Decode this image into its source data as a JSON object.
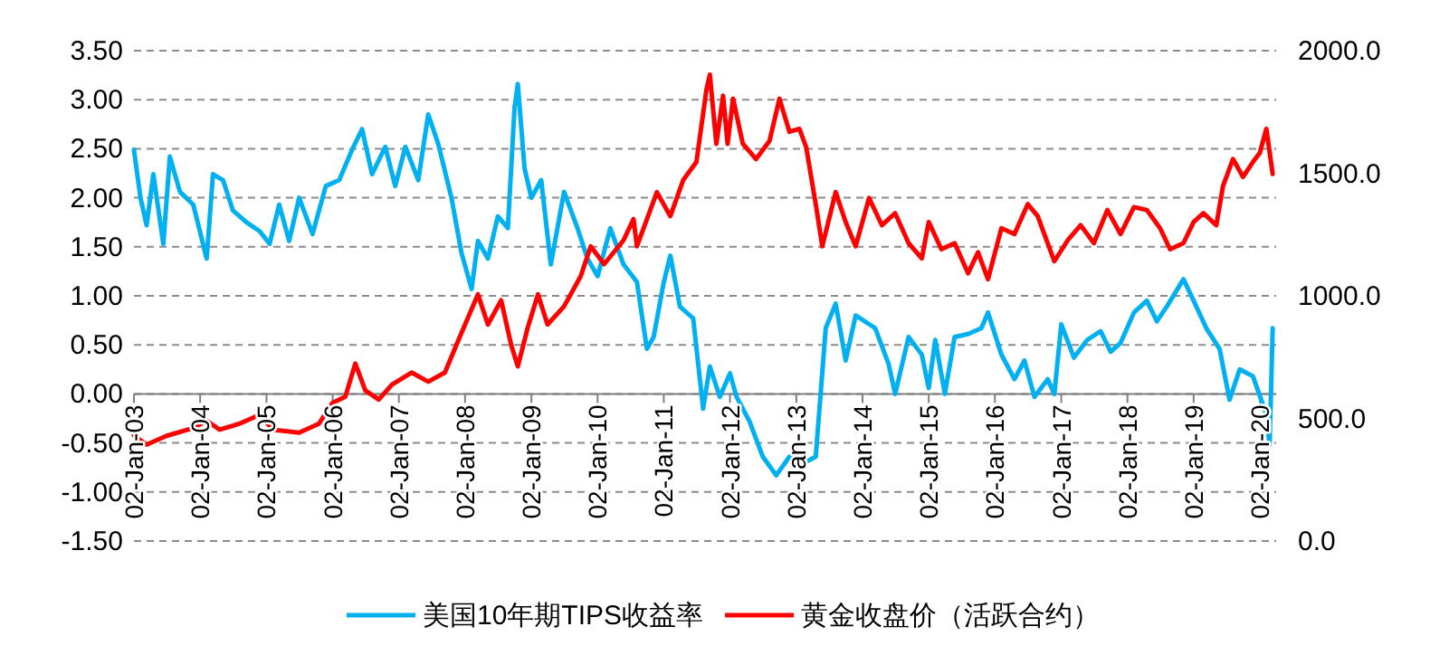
{
  "chart_data": {
    "type": "line",
    "grid": "y",
    "legend": "bottom",
    "xlim": [
      "2003-01-02",
      "2020-04-01"
    ],
    "xticks": [
      {
        "value": "2003-01-02",
        "label": "02-Jan-03"
      },
      {
        "value": "2004-01-02",
        "label": "02-Jan-04"
      },
      {
        "value": "2005-01-02",
        "label": "02-Jan-05"
      },
      {
        "value": "2006-01-02",
        "label": "02-Jan-06"
      },
      {
        "value": "2007-01-02",
        "label": "02-Jan-07"
      },
      {
        "value": "2008-01-02",
        "label": "02-Jan-08"
      },
      {
        "value": "2009-01-02",
        "label": "02-Jan-09"
      },
      {
        "value": "2010-01-02",
        "label": "02-Jan-10"
      },
      {
        "value": "2011-01-02",
        "label": "02-Jan-11"
      },
      {
        "value": "2012-01-02",
        "label": "02-Jan-12"
      },
      {
        "value": "2013-01-02",
        "label": "02-Jan-13"
      },
      {
        "value": "2014-01-02",
        "label": "02-Jan-14"
      },
      {
        "value": "2015-01-02",
        "label": "02-Jan-15"
      },
      {
        "value": "2016-01-02",
        "label": "02-Jan-16"
      },
      {
        "value": "2017-01-02",
        "label": "02-Jan-17"
      },
      {
        "value": "2018-01-02",
        "label": "02-Jan-18"
      },
      {
        "value": "2019-01-02",
        "label": "02-Jan-19"
      },
      {
        "value": "2020-01-02",
        "label": "02-Jan-20"
      }
    ],
    "ylim": [
      -1.5,
      3.5
    ],
    "yticks": [
      {
        "value": -1.5,
        "label": "-1.50"
      },
      {
        "value": -1,
        "label": "-1.00"
      },
      {
        "value": -0.5,
        "label": "-0.50"
      },
      {
        "value": 0,
        "label": "0.00"
      },
      {
        "value": 0.5,
        "label": "0.50"
      },
      {
        "value": 1,
        "label": "1.00"
      },
      {
        "value": 1.5,
        "label": "1.50"
      },
      {
        "value": 2,
        "label": "2.00"
      },
      {
        "value": 2.5,
        "label": "2.50"
      },
      {
        "value": 3,
        "label": "3.00"
      },
      {
        "value": 3.5,
        "label": "3.50"
      }
    ],
    "y2lim": [
      0,
      2000
    ],
    "y2ticks": [
      {
        "value": 0,
        "label": "0.0"
      },
      {
        "value": 500,
        "label": "500.0"
      },
      {
        "value": 1000,
        "label": "1000.0"
      },
      {
        "value": 1500,
        "label": "1500.0"
      },
      {
        "value": 2000,
        "label": "2000.0"
      }
    ],
    "series": [
      {
        "name": "美国10年期TIPS收益率",
        "color": "#00b0f0",
        "x": [
          "2003-01-02",
          "2003-02-07",
          "2003-03-13",
          "2003-04-19",
          "2003-06-13",
          "2003-07-19",
          "2003-09-13",
          "2003-11-25",
          "2004-02-07",
          "2004-03-13",
          "2004-05-07",
          "2004-07-01",
          "2004-09-13",
          "2004-11-25",
          "2005-01-19",
          "2005-03-13",
          "2005-05-07",
          "2005-07-01",
          "2005-09-13",
          "2005-11-25",
          "2006-02-07",
          "2006-04-19",
          "2006-06-13",
          "2006-08-07",
          "2006-10-19",
          "2006-12-13",
          "2007-02-07",
          "2007-04-19",
          "2007-06-13",
          "2007-08-07",
          "2007-10-19",
          "2007-12-13",
          "2008-02-07",
          "2008-03-13",
          "2008-05-07",
          "2008-07-01",
          "2008-08-25",
          "2008-10-01",
          "2008-10-19",
          "2008-11-25",
          "2009-01-02",
          "2009-02-25",
          "2009-04-19",
          "2009-07-01",
          "2009-09-13",
          "2009-11-07",
          "2010-01-02",
          "2010-03-13",
          "2010-05-25",
          "2010-08-07",
          "2010-10-01",
          "2010-11-07",
          "2011-01-02",
          "2011-02-07",
          "2011-04-01",
          "2011-06-13",
          "2011-08-07",
          "2011-09-13",
          "2011-11-07",
          "2012-01-02",
          "2012-02-07",
          "2012-04-19",
          "2012-07-01",
          "2012-09-13",
          "2012-11-25",
          "2013-02-07",
          "2013-04-19",
          "2013-06-13",
          "2013-08-07",
          "2013-10-01",
          "2013-11-25",
          "2014-03-13",
          "2014-05-25",
          "2014-07-01",
          "2014-09-13",
          "2014-11-25",
          "2015-01-02",
          "2015-02-07",
          "2015-04-01",
          "2015-05-25",
          "2015-08-07",
          "2015-10-19",
          "2015-11-25",
          "2016-02-07",
          "2016-04-19",
          "2016-06-13",
          "2016-08-07",
          "2016-10-19",
          "2016-11-25",
          "2017-01-02",
          "2017-03-13",
          "2017-05-25",
          "2017-08-07",
          "2017-10-01",
          "2017-11-25",
          "2018-02-07",
          "2018-04-19",
          "2018-06-13",
          "2018-08-07",
          "2018-11-07",
          "2019-01-02",
          "2019-03-13",
          "2019-05-25",
          "2019-07-19",
          "2019-09-13",
          "2019-11-25",
          "2020-02-07",
          "2020-02-25",
          "2020-03-13"
        ],
        "values": [
          2.49,
          2.0,
          1.72,
          2.24,
          1.53,
          2.42,
          2.06,
          1.93,
          1.38,
          2.24,
          2.18,
          1.87,
          1.75,
          1.66,
          1.53,
          1.93,
          1.56,
          2.0,
          1.63,
          2.12,
          2.18,
          2.49,
          2.7,
          2.24,
          2.52,
          2.12,
          2.52,
          2.18,
          2.85,
          2.55,
          2.0,
          1.44,
          1.07,
          1.56,
          1.38,
          1.81,
          1.69,
          2.92,
          3.16,
          2.3,
          2.0,
          2.18,
          1.32,
          2.06,
          1.69,
          1.38,
          1.2,
          1.69,
          1.32,
          1.14,
          0.46,
          0.58,
          1.14,
          1.41,
          0.89,
          0.77,
          -0.15,
          0.28,
          -0.03,
          0.21,
          -0.03,
          -0.28,
          -0.64,
          -0.83,
          -0.64,
          -0.71,
          -0.64,
          0.67,
          0.92,
          0.34,
          0.8,
          0.67,
          0.31,
          0.0,
          0.58,
          0.4,
          0.06,
          0.55,
          0.0,
          0.58,
          0.61,
          0.67,
          0.83,
          0.4,
          0.15,
          0.34,
          -0.03,
          0.15,
          0.0,
          0.71,
          0.37,
          0.55,
          0.64,
          0.43,
          0.52,
          0.83,
          0.95,
          0.74,
          0.89,
          1.17,
          0.95,
          0.67,
          0.46,
          -0.06,
          0.25,
          0.18,
          -0.21,
          -0.52,
          0.67
        ]
      },
      {
        "name": "黄金收盘价（活跃合约）",
        "color": "#ff0000",
        "axis": "y2",
        "x": [
          "2003-01-02",
          "2003-03-13",
          "2003-07-01",
          "2003-11-25",
          "2004-02-07",
          "2004-04-19",
          "2004-08-07",
          "2004-11-25",
          "2005-02-07",
          "2005-07-01",
          "2005-10-19",
          "2006-01-02",
          "2006-03-13",
          "2006-05-07",
          "2006-07-01",
          "2006-09-13",
          "2006-11-25",
          "2007-03-13",
          "2007-06-13",
          "2007-09-13",
          "2007-11-07",
          "2008-01-02",
          "2008-03-13",
          "2008-05-07",
          "2008-07-19",
          "2008-09-13",
          "2008-10-19",
          "2008-12-13",
          "2009-02-07",
          "2009-04-01",
          "2009-07-01",
          "2009-10-01",
          "2009-11-25",
          "2010-02-07",
          "2010-05-25",
          "2010-07-19",
          "2010-08-07",
          "2010-11-25",
          "2011-02-07",
          "2011-04-19",
          "2011-07-01",
          "2011-08-25",
          "2011-09-13",
          "2011-10-19",
          "2011-11-25",
          "2011-12-20",
          "2012-01-19",
          "2012-03-13",
          "2012-05-25",
          "2012-08-07",
          "2012-10-01",
          "2012-11-25",
          "2013-01-19",
          "2013-02-25",
          "2013-04-19",
          "2013-05-25",
          "2013-08-07",
          "2013-10-01",
          "2013-11-25",
          "2014-02-07",
          "2014-04-19",
          "2014-07-01",
          "2014-09-13",
          "2014-11-25",
          "2015-01-02",
          "2015-03-13",
          "2015-05-25",
          "2015-08-07",
          "2015-10-01",
          "2015-11-25",
          "2016-02-07",
          "2016-04-19",
          "2016-07-01",
          "2016-08-25",
          "2016-11-25",
          "2017-02-07",
          "2017-04-19",
          "2017-07-01",
          "2017-09-13",
          "2017-11-25",
          "2018-02-07",
          "2018-04-19",
          "2018-07-01",
          "2018-08-25",
          "2018-11-07",
          "2019-01-02",
          "2019-02-25",
          "2019-05-07",
          "2019-06-13",
          "2019-08-07",
          "2019-10-01",
          "2019-11-25",
          "2020-01-02",
          "2020-02-07",
          "2020-03-13"
        ],
        "values": [
          430,
          393,
          429,
          461,
          491,
          454,
          479,
          515,
          454,
          442,
          479,
          564,
          589,
          724,
          614,
          577,
          638,
          687,
          650,
          687,
          785,
          883,
          1006,
          883,
          982,
          798,
          712,
          871,
          1006,
          883,
          957,
          1080,
          1202,
          1129,
          1227,
          1313,
          1202,
          1423,
          1325,
          1472,
          1546,
          1840,
          1902,
          1620,
          1816,
          1620,
          1804,
          1620,
          1558,
          1632,
          1804,
          1669,
          1681,
          1607,
          1374,
          1202,
          1423,
          1301,
          1202,
          1399,
          1288,
          1337,
          1215,
          1153,
          1301,
          1190,
          1215,
          1092,
          1178,
          1068,
          1276,
          1252,
          1374,
          1325,
          1141,
          1227,
          1288,
          1215,
          1350,
          1252,
          1362,
          1350,
          1276,
          1190,
          1215,
          1301,
          1337,
          1288,
          1448,
          1558,
          1485,
          1546,
          1583,
          1681,
          1497
        ]
      }
    ]
  }
}
